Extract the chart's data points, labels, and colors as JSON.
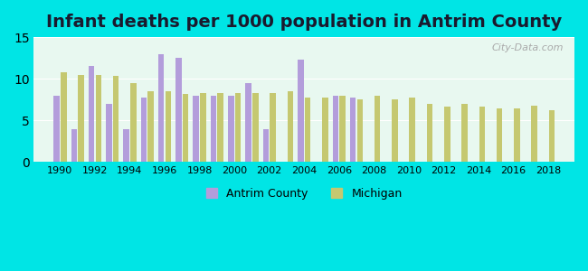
{
  "title": "Infant deaths per 1000 population in Antrim County",
  "years": [
    1990,
    1991,
    1992,
    1993,
    1994,
    1995,
    1996,
    1997,
    1998,
    1999,
    2000,
    2001,
    2002,
    2003,
    2004,
    2005,
    2006,
    2007,
    2008,
    2009,
    2010,
    2011,
    2012,
    2013,
    2014,
    2015,
    2016,
    2017,
    2018
  ],
  "antrim": [
    8.0,
    4.0,
    11.5,
    7.0,
    4.0,
    7.8,
    13.0,
    12.5,
    8.0,
    8.0,
    8.0,
    9.5,
    4.0,
    null,
    12.3,
    null,
    8.0,
    7.8,
    null,
    null,
    null,
    null,
    null,
    null,
    null,
    null,
    null,
    null,
    null
  ],
  "michigan": [
    10.8,
    10.5,
    10.5,
    10.3,
    9.5,
    8.5,
    8.5,
    8.2,
    8.3,
    8.3,
    8.3,
    8.3,
    8.3,
    8.5,
    7.7,
    7.7,
    8.0,
    7.5,
    8.0,
    7.5,
    7.7,
    7.0,
    6.7,
    7.0,
    6.7,
    6.5,
    6.5,
    6.8,
    6.2
  ],
  "antrim_color": "#b39ddb",
  "michigan_color": "#c5c870",
  "background_outer": "#00e5e5",
  "background_inner": "#e8f8f0",
  "ylim": [
    0,
    15
  ],
  "yticks": [
    0,
    5,
    10,
    15
  ],
  "bar_width": 0.4,
  "title_fontsize": 14
}
